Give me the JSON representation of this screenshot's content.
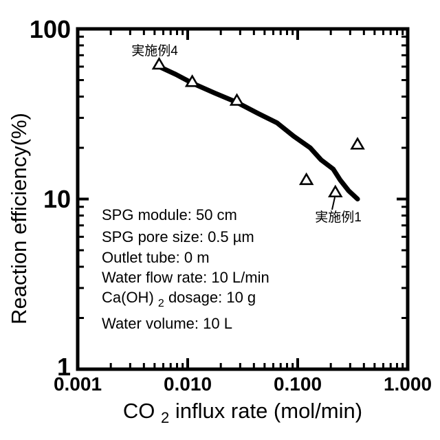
{
  "colors": {
    "ink": "#000000",
    "background": "#ffffff"
  },
  "axis": {
    "xlabel_prefix": "CO",
    "xlabel_sub": "2",
    "xlabel_suffix": " influx rate (mol/min)",
    "ylabel": "Reaction efficiency(%)"
  },
  "parameters": {
    "line1": "SPG module: 50 cm",
    "line2": "SPG pore size: 0.5 µm",
    "line3": "Outlet tube: 0 m",
    "line4": "Water flow rate: 10 L/min",
    "line5_prefix": "Ca(OH)",
    "line5_sub": "2",
    "line5_suffix": " dosage: 10 g",
    "line6": "Water volume: 10 L"
  },
  "chart_data": {
    "type": "scatter",
    "title": "",
    "xlabel": "CO2 influx rate (mol/min)",
    "ylabel": "Reaction efficiency(%)",
    "x_scale": "log",
    "y_scale": "log",
    "xlim": [
      0.001,
      1.0
    ],
    "ylim": [
      1,
      100
    ],
    "grid": false,
    "legend": "none",
    "x_tick_labels": [
      "0.001",
      "0.010",
      "0.100",
      "1.000"
    ],
    "y_tick_labels": [
      "1",
      "10",
      "100"
    ],
    "marker": "open-triangle",
    "points": [
      {
        "x": 0.0055,
        "y": 62,
        "label": "実施例4"
      },
      {
        "x": 0.011,
        "y": 49
      },
      {
        "x": 0.028,
        "y": 38
      },
      {
        "x": 0.12,
        "y": 13
      },
      {
        "x": 0.22,
        "y": 11,
        "label": "実施例1"
      },
      {
        "x": 0.35,
        "y": 21
      }
    ],
    "trend_curve": [
      [
        0.0055,
        60
      ],
      [
        0.0078,
        54
      ],
      [
        0.011,
        48
      ],
      [
        0.0175,
        42
      ],
      [
        0.028,
        37
      ],
      [
        0.043,
        32
      ],
      [
        0.065,
        28
      ],
      [
        0.092,
        23.4
      ],
      [
        0.13,
        20
      ],
      [
        0.163,
        17
      ],
      [
        0.21,
        15
      ],
      [
        0.244,
        12.9
      ],
      [
        0.29,
        11.2
      ],
      [
        0.35,
        10
      ]
    ]
  }
}
